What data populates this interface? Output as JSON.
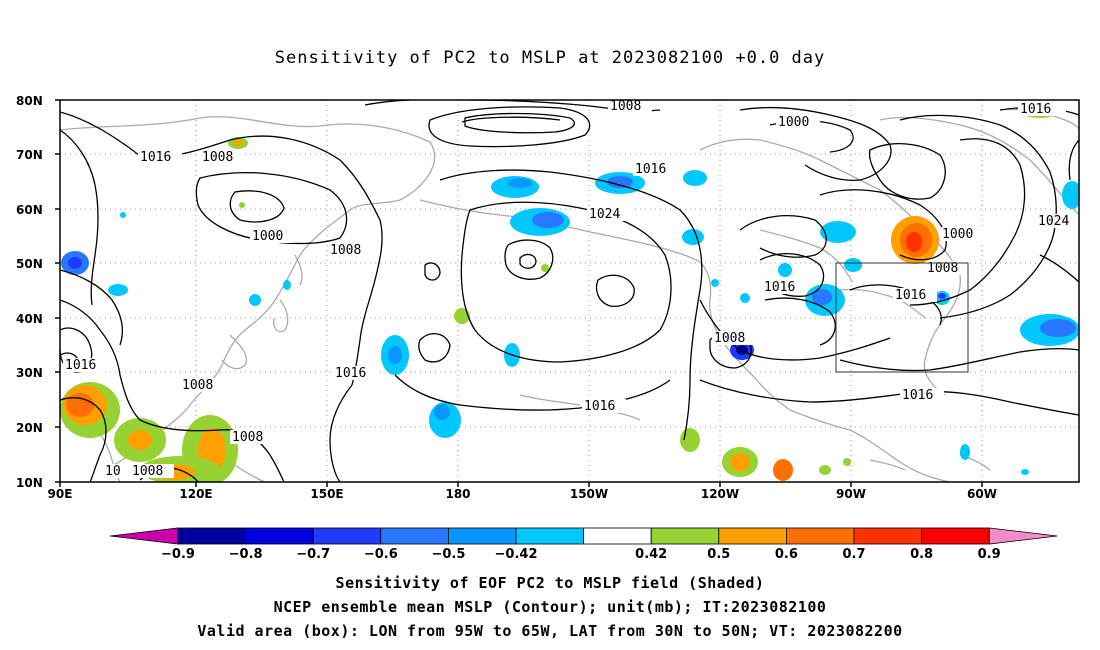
{
  "title": "Sensitivity of PC2 to MSLP at 2023082100 +0.0 day",
  "map": {
    "lat_ticks": [
      "80N",
      "70N",
      "60N",
      "50N",
      "40N",
      "30N",
      "20N",
      "10N"
    ],
    "lon_ticks": [
      "90E",
      "120E",
      "150E",
      "180",
      "150W",
      "120W",
      "90W",
      "60W"
    ],
    "contour_labels": [
      "1008",
      "1016",
      "1000",
      "1016",
      "1008",
      "1000",
      "1024",
      "1008",
      "1016",
      "1000",
      "1008",
      "1016",
      "1016",
      "1008",
      "1016",
      "1008",
      "1016",
      "1016",
      "1016",
      "1008",
      "1008",
      "1024",
      "10",
      "1008"
    ],
    "valid_box": {
      "lon_min": "95W",
      "lon_max": "65W",
      "lat_min": "30N",
      "lat_max": "50N"
    }
  },
  "colorbar": {
    "labels": [
      "-0.9",
      "-0.8",
      "-0.7",
      "-0.6",
      "-0.5",
      "-0.42",
      "0.42",
      "0.5",
      "0.6",
      "0.7",
      "0.8",
      "0.9"
    ],
    "colors": [
      "#cc00aa",
      "#0000a0",
      "#0000e0",
      "#1e3cff",
      "#2878ff",
      "#0a96ff",
      "#00c8ff",
      "#ffffff",
      "#96d232",
      "#ffa000",
      "#ff6e00",
      "#ff3200",
      "#ff0000",
      "#f08cc8"
    ]
  },
  "captions": {
    "line1": "Sensitivity of EOF PC2 to MSLP field (Shaded)",
    "line2": "NCEP ensemble mean MSLP (Contour); unit(mb); IT:2023082100",
    "line3": "Valid area (box): LON from 95W to 65W, LAT from 30N to 50N; VT: 2023082200"
  }
}
